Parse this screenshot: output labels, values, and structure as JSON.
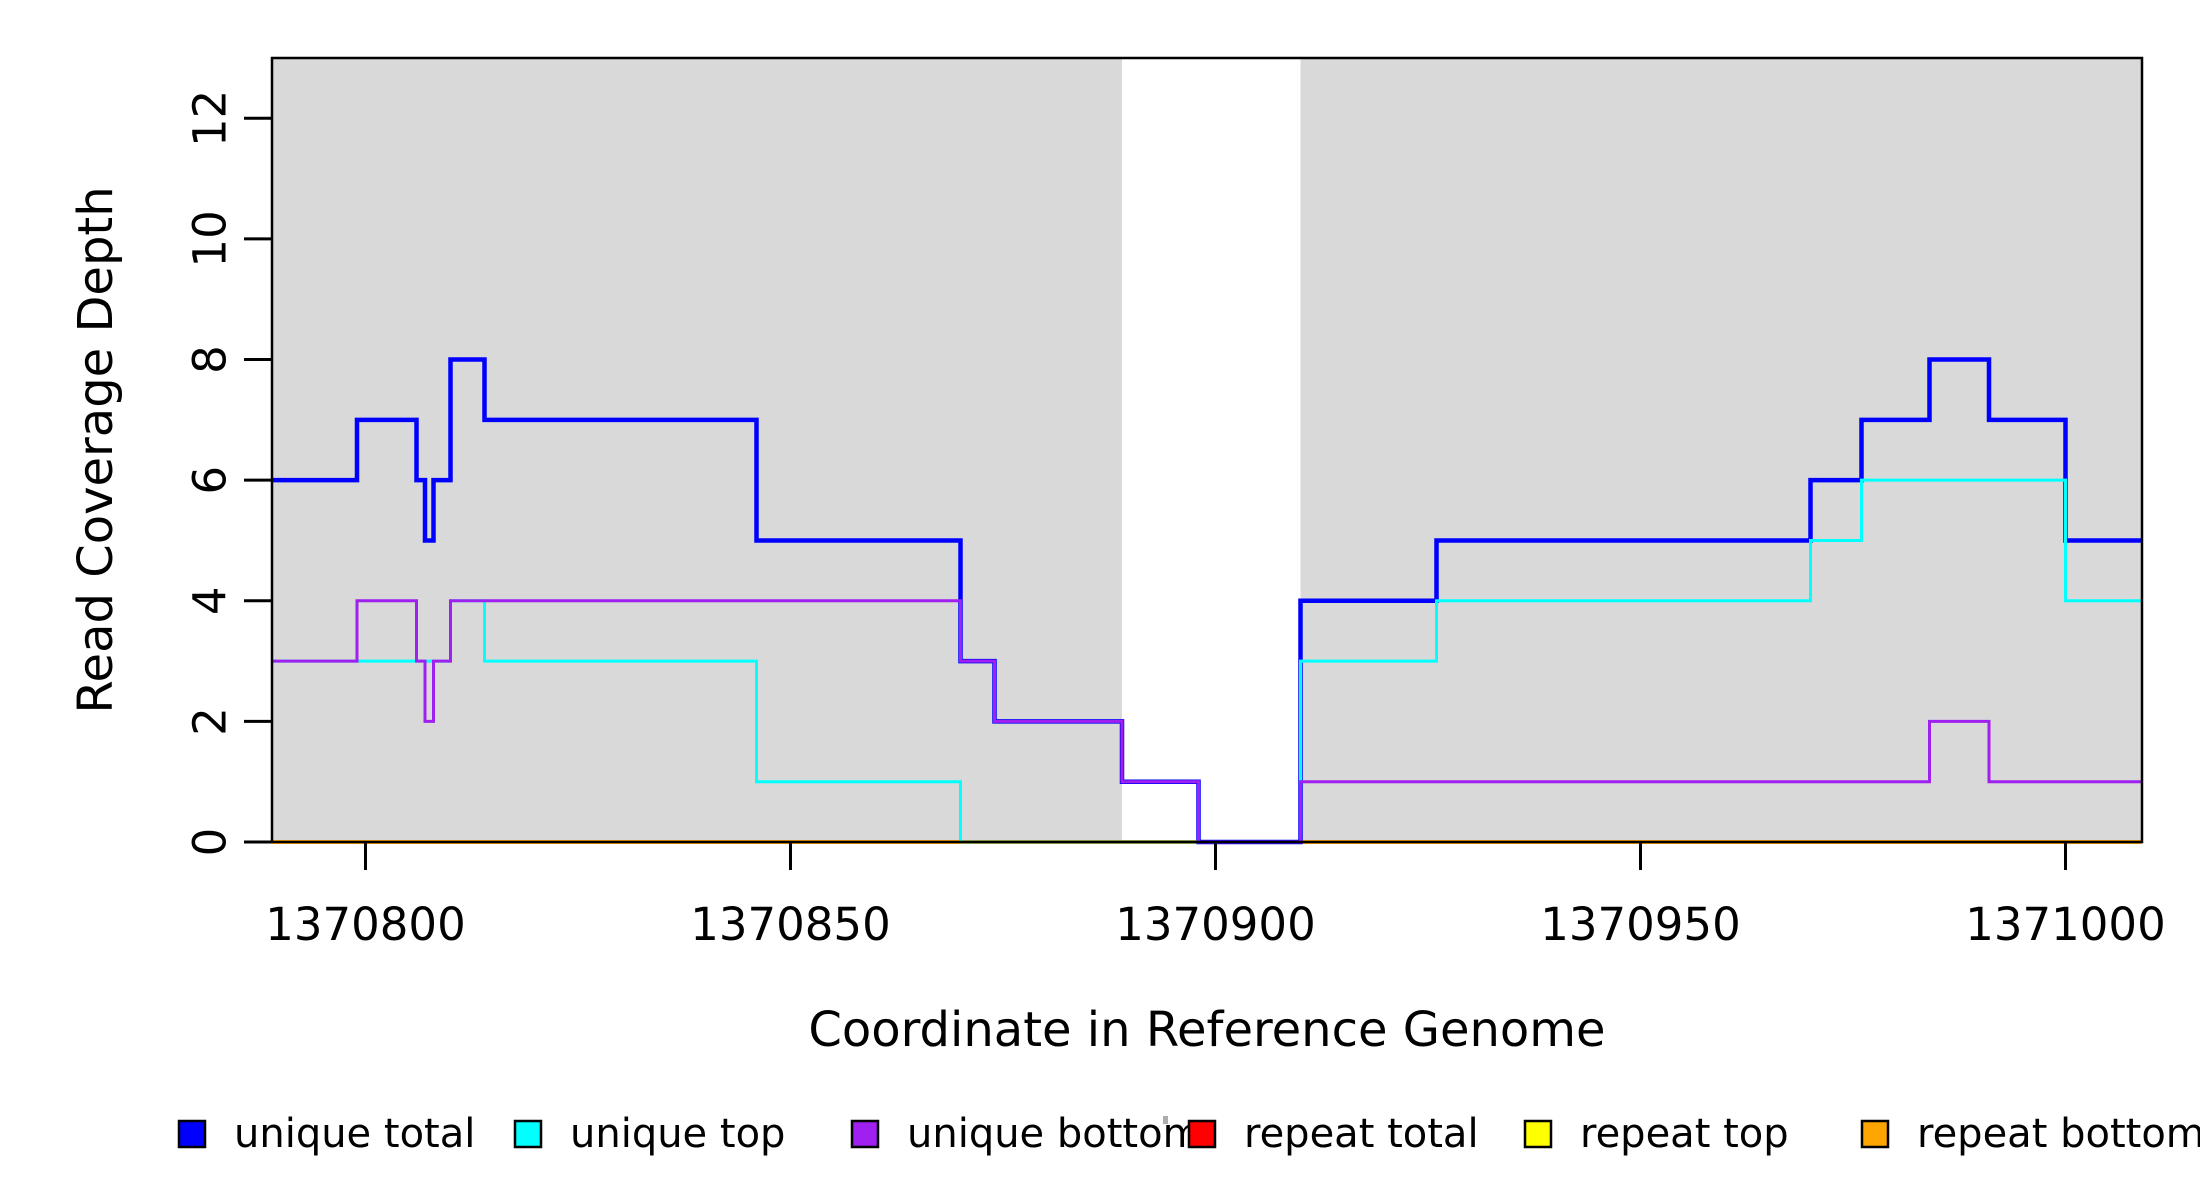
{
  "chart_data": {
    "type": "line",
    "subtype": "step-coverage-plot",
    "title": "",
    "xlabel": "Coordinate in Reference Genome",
    "ylabel": "Read Coverage Depth",
    "xlim": [
      1370789,
      1371009
    ],
    "ylim": [
      0,
      13
    ],
    "x_ticks": [
      1370800,
      1370850,
      1370900,
      1370950,
      1371000
    ],
    "y_ticks": [
      0,
      2,
      4,
      6,
      8,
      10,
      12
    ],
    "grid": "off",
    "legend_position": "bottom",
    "plot_background": "#ffffff",
    "shaded_region_color": "#d9d9d9",
    "background_regions": [
      {
        "name": "left-gray-block",
        "x0": 1370789,
        "x1": 1370889
      },
      {
        "name": "right-gray-block",
        "x0": 1370910,
        "x1": 1371009
      }
    ],
    "series": [
      {
        "name": "repeat total",
        "color": "#ff0000",
        "line_width": 4,
        "steps": [
          [
            1370789,
            0
          ]
        ]
      },
      {
        "name": "repeat top",
        "color": "#ffff00",
        "line_width": 4,
        "steps": [
          [
            1370789,
            0
          ]
        ]
      },
      {
        "name": "repeat bottom",
        "color": "#ffa500",
        "line_width": 4,
        "steps": [
          [
            1370789,
            0
          ]
        ]
      },
      {
        "name": "unique total",
        "color": "#0000ff",
        "line_width": 4.5,
        "steps": [
          [
            1370789,
            6
          ],
          [
            1370799,
            7
          ],
          [
            1370806,
            6
          ],
          [
            1370807,
            5
          ],
          [
            1370808,
            6
          ],
          [
            1370810,
            8
          ],
          [
            1370814,
            7
          ],
          [
            1370846,
            5
          ],
          [
            1370870,
            3
          ],
          [
            1370874,
            2
          ],
          [
            1370889,
            1
          ],
          [
            1370898,
            0
          ],
          [
            1370910,
            4
          ],
          [
            1370926,
            5
          ],
          [
            1370970,
            6
          ],
          [
            1370976,
            7
          ],
          [
            1370984,
            8
          ],
          [
            1370991,
            7
          ],
          [
            1371000,
            5
          ]
        ]
      },
      {
        "name": "unique top",
        "color": "#00ffff",
        "line_width": 3,
        "steps": [
          [
            1370789,
            3
          ],
          [
            1370810,
            4
          ],
          [
            1370814,
            3
          ],
          [
            1370846,
            1
          ],
          [
            1370870,
            0
          ],
          [
            1370910,
            3
          ],
          [
            1370926,
            4
          ],
          [
            1370970,
            5
          ],
          [
            1370976,
            6
          ],
          [
            1371000,
            4
          ]
        ]
      },
      {
        "name": "unique bottom",
        "color": "#a020f0",
        "line_width": 3,
        "steps": [
          [
            1370789,
            3
          ],
          [
            1370799,
            4
          ],
          [
            1370806,
            3
          ],
          [
            1370807,
            2
          ],
          [
            1370808,
            3
          ],
          [
            1370810,
            4
          ],
          [
            1370870,
            3
          ],
          [
            1370874,
            2
          ],
          [
            1370889,
            1
          ],
          [
            1370898,
            0
          ],
          [
            1370910,
            1
          ],
          [
            1370984,
            2
          ],
          [
            1370991,
            1
          ]
        ]
      }
    ],
    "legend": [
      {
        "label": "unique total",
        "color": "#0000ff"
      },
      {
        "label": "unique top",
        "color": "#00ffff"
      },
      {
        "label": "unique bottom",
        "color": "#a020f0"
      },
      {
        "label": "repeat total",
        "color": "#ff0000"
      },
      {
        "label": "repeat top",
        "color": "#ffff00"
      },
      {
        "label": "repeat bottom",
        "color": "#ffa500"
      }
    ]
  }
}
